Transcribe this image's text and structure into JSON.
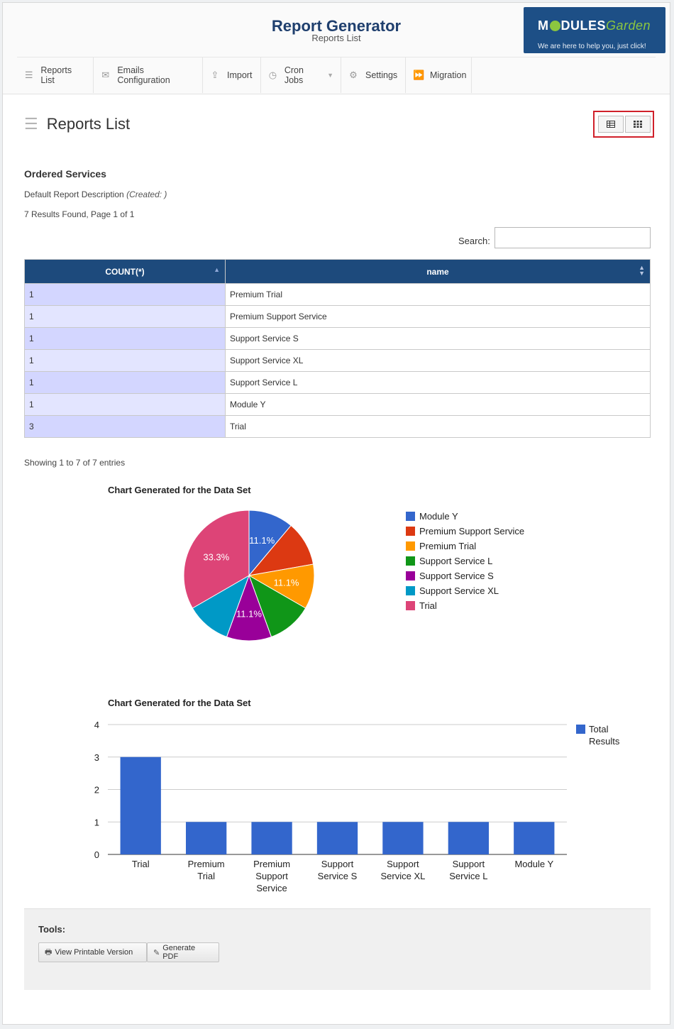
{
  "header": {
    "title": "Report Generator",
    "subtitle": "Reports List",
    "logo_word_a": "M",
    "logo_word_b": "DULES",
    "logo_word_c": "Garden",
    "logo_tagline": "We are here to help you, just click!"
  },
  "nav": [
    {
      "label": "Reports List",
      "icon": "list-icon"
    },
    {
      "label": "Emails Configuration",
      "icon": "envelope-icon"
    },
    {
      "label": "Import",
      "icon": "share-icon"
    },
    {
      "label": "Cron Jobs",
      "icon": "clock-icon"
    },
    {
      "label": "Settings",
      "icon": "gears-icon"
    },
    {
      "label": "Migration",
      "icon": "fast-forward-icon"
    }
  ],
  "page": {
    "title": "Reports List",
    "view_buttons": [
      "table-view-icon",
      "grid-view-icon"
    ]
  },
  "report": {
    "name": "Ordered Services",
    "description": "Default Report Description",
    "created": "(Created: )",
    "results": "7 Results Found, Page 1 of 1",
    "search_label": "Search:",
    "search_value": "",
    "entries": "Showing 1 to 7 of 7 entries"
  },
  "table": {
    "columns": [
      "COUNT(*)",
      "name"
    ],
    "rows": [
      [
        "1",
        "Premium Trial"
      ],
      [
        "1",
        "Premium Support Service"
      ],
      [
        "1",
        "Support Service S"
      ],
      [
        "1",
        "Support Service XL"
      ],
      [
        "1",
        "Support Service L"
      ],
      [
        "1",
        "Module Y"
      ],
      [
        "3",
        "Trial"
      ]
    ]
  },
  "chart_data": [
    {
      "type": "pie",
      "title": "Chart Generated for the Data Set",
      "labels": [
        "Module Y",
        "Premium Support Service",
        "Premium Trial",
        "Support Service L",
        "Support Service S",
        "Support Service XL",
        "Trial"
      ],
      "values": [
        1,
        1,
        1,
        1,
        1,
        1,
        3
      ],
      "colors": [
        "#3366cc",
        "#dc3912",
        "#ff9900",
        "#109618",
        "#990099",
        "#0099c6",
        "#dd4477"
      ],
      "slice_labels": [
        "11.1%",
        "",
        "11.1%",
        "",
        "11.1%",
        "",
        "33.3%"
      ],
      "legend": "right"
    },
    {
      "type": "bar",
      "title": "Chart Generated for the Data Set",
      "categories": [
        "Trial",
        "Premium Trial",
        "Premium Support Service",
        "Support Service S",
        "Support Service XL",
        "Support Service L",
        "Module Y"
      ],
      "category_lines": [
        [
          "Trial"
        ],
        [
          "Premium",
          "Trial"
        ],
        [
          "Premium",
          "Support",
          "Service"
        ],
        [
          "Support",
          "Service S"
        ],
        [
          "Support",
          "Service XL"
        ],
        [
          "Support",
          "Service L"
        ],
        [
          "Module Y"
        ]
      ],
      "series": [
        {
          "name": "Total Results",
          "values": [
            3,
            1,
            1,
            1,
            1,
            1,
            1
          ],
          "color": "#3366cc"
        }
      ],
      "legend_lines": [
        "Total",
        "Results"
      ],
      "yticks": [
        0,
        1,
        2,
        3,
        4
      ],
      "ylim": [
        0,
        4
      ],
      "grid": true,
      "legend": "right"
    }
  ],
  "tools": {
    "label": "Tools:",
    "printable": "View Printable Version",
    "pdf": "Generate PDF"
  }
}
